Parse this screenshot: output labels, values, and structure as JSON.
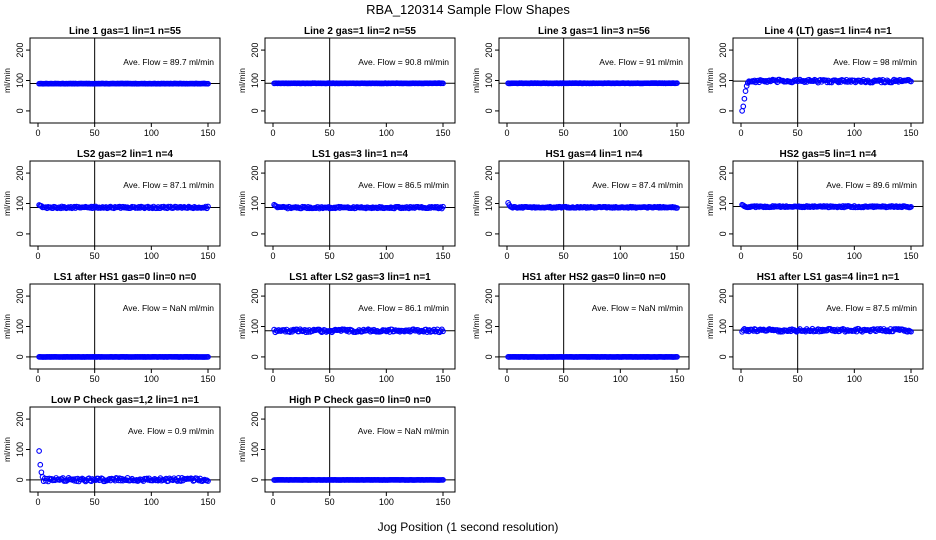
{
  "title": "RBA_120314  Sample Flow Shapes",
  "x_axis_label": "Jog Position (1 second resolution)",
  "y_axis_label": "ml/min",
  "chart_data": [
    {
      "type": "scatter",
      "title": "Line 1 gas=1 lin=1 n=55",
      "annotation": "Ave. Flow =  89.7  ml/min",
      "xlim": [
        0,
        150
      ],
      "ylim": [
        -20,
        220
      ],
      "xticks": [
        0,
        50,
        100,
        150
      ],
      "yticks": [
        0,
        100,
        200
      ],
      "vline": 50,
      "hline": 90,
      "n_points": 150,
      "base": 89.7,
      "noise": 0.5,
      "startup": null,
      "series_color": "#0000ff"
    },
    {
      "type": "scatter",
      "title": "Line 2 gas=1 lin=2 n=55",
      "annotation": "Ave. Flow =  90.8  ml/min",
      "xlim": [
        0,
        150
      ],
      "ylim": [
        -20,
        220
      ],
      "xticks": [
        0,
        50,
        100,
        150
      ],
      "yticks": [
        0,
        100,
        200
      ],
      "vline": 50,
      "hline": 91,
      "n_points": 150,
      "base": 90.8,
      "noise": 0.5,
      "startup": null,
      "series_color": "#0000ff"
    },
    {
      "type": "scatter",
      "title": "Line 3 gas=1 lin=3 n=56",
      "annotation": "Ave. Flow =  91  ml/min",
      "xlim": [
        0,
        150
      ],
      "ylim": [
        -20,
        220
      ],
      "xticks": [
        0,
        50,
        100,
        150
      ],
      "yticks": [
        0,
        100,
        200
      ],
      "vline": 50,
      "hline": 91,
      "n_points": 150,
      "base": 91,
      "noise": 0.5,
      "startup": null,
      "series_color": "#0000ff"
    },
    {
      "type": "scatter",
      "title": "Line 4 (LT) gas=1 lin=4 n=1",
      "annotation": "Ave. Flow =  98  ml/min",
      "xlim": [
        0,
        150
      ],
      "ylim": [
        -20,
        220
      ],
      "xticks": [
        0,
        50,
        100,
        150
      ],
      "yticks": [
        0,
        100,
        200
      ],
      "vline": 50,
      "hline": 98,
      "n_points": 150,
      "base": 98,
      "noise": 5,
      "startup": [
        0,
        15,
        40,
        65,
        82,
        92
      ],
      "series_color": "#0000ff"
    },
    {
      "type": "scatter",
      "title": "LS2 gas=2 lin=1 n=4",
      "annotation": "Ave. Flow =  87.1  ml/min",
      "xlim": [
        0,
        150
      ],
      "ylim": [
        -20,
        220
      ],
      "xticks": [
        0,
        50,
        100,
        150
      ],
      "yticks": [
        0,
        100,
        200
      ],
      "vline": 50,
      "hline": 87,
      "n_points": 150,
      "base": 87.1,
      "noise": 3,
      "startup": [
        95,
        93,
        92
      ],
      "series_color": "#0000ff"
    },
    {
      "type": "scatter",
      "title": "LS1 gas=3 lin=1 n=4",
      "annotation": "Ave. Flow =  86.5  ml/min",
      "xlim": [
        0,
        150
      ],
      "ylim": [
        -20,
        220
      ],
      "xticks": [
        0,
        50,
        100,
        150
      ],
      "yticks": [
        0,
        100,
        200
      ],
      "vline": 50,
      "hline": 87,
      "n_points": 150,
      "base": 86.5,
      "noise": 3,
      "startup": [
        96,
        93,
        91
      ],
      "series_color": "#0000ff"
    },
    {
      "type": "scatter",
      "title": "HS1 gas=4 lin=1 n=4",
      "annotation": "Ave. Flow =  87.4  ml/min",
      "xlim": [
        0,
        150
      ],
      "ylim": [
        -20,
        220
      ],
      "xticks": [
        0,
        50,
        100,
        150
      ],
      "yticks": [
        0,
        100,
        200
      ],
      "vline": 50,
      "hline": 88,
      "n_points": 150,
      "base": 87.4,
      "noise": 2,
      "startup": [
        102,
        95,
        90
      ],
      "series_color": "#0000ff"
    },
    {
      "type": "scatter",
      "title": "HS2 gas=5 lin=1 n=4",
      "annotation": "Ave. Flow =  89.6  ml/min",
      "xlim": [
        0,
        150
      ],
      "ylim": [
        -20,
        220
      ],
      "xticks": [
        0,
        50,
        100,
        150
      ],
      "yticks": [
        0,
        100,
        200
      ],
      "vline": 50,
      "hline": 90,
      "n_points": 150,
      "base": 89.6,
      "noise": 2.5,
      "startup": [
        96,
        94
      ],
      "series_color": "#0000ff"
    },
    {
      "type": "scatter",
      "title": "LS1 after HS1 gas=0 lin=0 n=0",
      "annotation": "Ave. Flow =  NaN  ml/min",
      "xlim": [
        0,
        150
      ],
      "ylim": [
        -20,
        220
      ],
      "xticks": [
        0,
        50,
        100,
        150
      ],
      "yticks": [
        0,
        100,
        200
      ],
      "vline": 50,
      "hline": 0,
      "n_points": 150,
      "base": 0,
      "noise": 0.3,
      "startup": null,
      "series_color": "#0000ff"
    },
    {
      "type": "scatter",
      "title": "LS1 after LS2 gas=3 lin=1 n=1",
      "annotation": "Ave. Flow =  86.1  ml/min",
      "xlim": [
        0,
        150
      ],
      "ylim": [
        -20,
        220
      ],
      "xticks": [
        0,
        50,
        100,
        150
      ],
      "yticks": [
        0,
        100,
        200
      ],
      "vline": 50,
      "hline": 86,
      "n_points": 150,
      "base": 86.1,
      "noise": 5,
      "startup": null,
      "series_color": "#0000ff"
    },
    {
      "type": "scatter",
      "title": "HS1 after HS2 gas=0 lin=0 n=0",
      "annotation": "Ave. Flow =  NaN  ml/min",
      "xlim": [
        0,
        150
      ],
      "ylim": [
        -20,
        220
      ],
      "xticks": [
        0,
        50,
        100,
        150
      ],
      "yticks": [
        0,
        100,
        200
      ],
      "vline": 50,
      "hline": 0,
      "n_points": 150,
      "base": 0,
      "noise": 0.3,
      "startup": null,
      "series_color": "#0000ff"
    },
    {
      "type": "scatter",
      "title": "HS1 after LS1 gas=4 lin=1 n=1",
      "annotation": "Ave. Flow =  87.5  ml/min",
      "xlim": [
        0,
        150
      ],
      "ylim": [
        -20,
        220
      ],
      "xticks": [
        0,
        50,
        100,
        150
      ],
      "yticks": [
        0,
        100,
        200
      ],
      "vline": 50,
      "hline": 88,
      "n_points": 150,
      "base": 87.5,
      "noise": 5,
      "startup": null,
      "series_color": "#0000ff"
    },
    {
      "type": "scatter",
      "title": "Low P Check gas=1,2 lin=1 n=1",
      "annotation": "Ave. Flow =  0.9  ml/min",
      "xlim": [
        0,
        150
      ],
      "ylim": [
        -20,
        220
      ],
      "xticks": [
        0,
        50,
        100,
        150
      ],
      "yticks": [
        0,
        100,
        200
      ],
      "vline": 50,
      "hline": 0,
      "n_points": 150,
      "base": 0.9,
      "noise": 6,
      "startup": [
        95,
        50,
        25,
        10
      ],
      "series_color": "#0000ff"
    },
    {
      "type": "scatter",
      "title": "High P Check gas=0 lin=0 n=0",
      "annotation": "Ave. Flow =  NaN  ml/min",
      "xlim": [
        0,
        150
      ],
      "ylim": [
        -20,
        220
      ],
      "xticks": [
        0,
        50,
        100,
        150
      ],
      "yticks": [
        0,
        100,
        200
      ],
      "vline": 50,
      "hline": 0,
      "n_points": 150,
      "base": 0,
      "noise": 0.3,
      "startup": null,
      "series_color": "#0000ff"
    }
  ]
}
